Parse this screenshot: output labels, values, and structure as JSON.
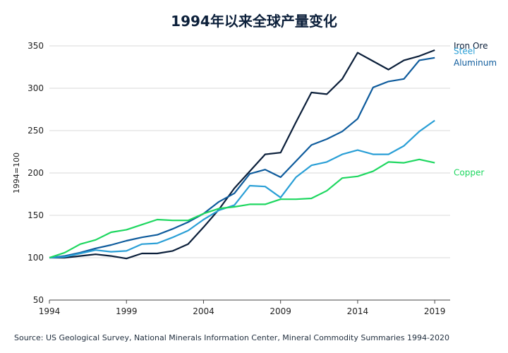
{
  "header": {
    "title": "1994年以来全球产量变化"
  },
  "footer": {
    "source": "Source: US Geological Survey, National Minerals Information Center, Mineral Commodity Summaries 1994-2020"
  },
  "chart_data": {
    "type": "line",
    "title": "1994年以来全球产量变化",
    "xlabel": "",
    "ylabel": "1994=100",
    "xlim": [
      1994,
      2020
    ],
    "ylim": [
      50,
      350
    ],
    "xticks": [
      1994,
      1999,
      2004,
      2009,
      2014,
      2019
    ],
    "yticks": [
      50,
      100,
      150,
      200,
      250,
      300,
      350
    ],
    "grid": "horizontal",
    "legend": "right-inline",
    "x": [
      1994,
      1995,
      1996,
      1997,
      1998,
      1999,
      2000,
      2001,
      2002,
      2003,
      2004,
      2005,
      2006,
      2007,
      2008,
      2009,
      2010,
      2011,
      2012,
      2013,
      2014,
      2015,
      2016,
      2017,
      2018,
      2019
    ],
    "series": [
      {
        "name": "Iron Ore",
        "color": "#0b1f3a",
        "values": [
          100,
          100,
          102,
          104,
          102,
          99,
          105,
          105,
          108,
          116,
          136,
          157,
          182,
          202,
          222,
          224,
          260,
          295,
          293,
          311,
          342,
          332,
          322,
          333,
          338,
          345
        ]
      },
      {
        "name": "Aluminum",
        "color": "#0e5b9c",
        "values": [
          100,
          102,
          106,
          111,
          115,
          120,
          124,
          127,
          134,
          142,
          152,
          166,
          176,
          199,
          204,
          195,
          214,
          233,
          240,
          249,
          264,
          301,
          308,
          311,
          333,
          336
        ]
      },
      {
        "name": "Steel",
        "color": "#2a9fd6",
        "values": [
          100,
          101,
          105,
          109,
          107,
          108,
          116,
          117,
          124,
          132,
          145,
          156,
          162,
          185,
          184,
          171,
          195,
          209,
          213,
          222,
          227,
          222,
          222,
          232,
          249,
          262
        ]
      },
      {
        "name": "Copper",
        "color": "#1ed760",
        "values": [
          100,
          106,
          116,
          121,
          130,
          133,
          139,
          145,
          144,
          144,
          152,
          158,
          160,
          163,
          163,
          169,
          169,
          170,
          179,
          194,
          196,
          202,
          213,
          212,
          216,
          212
        ]
      }
    ]
  }
}
